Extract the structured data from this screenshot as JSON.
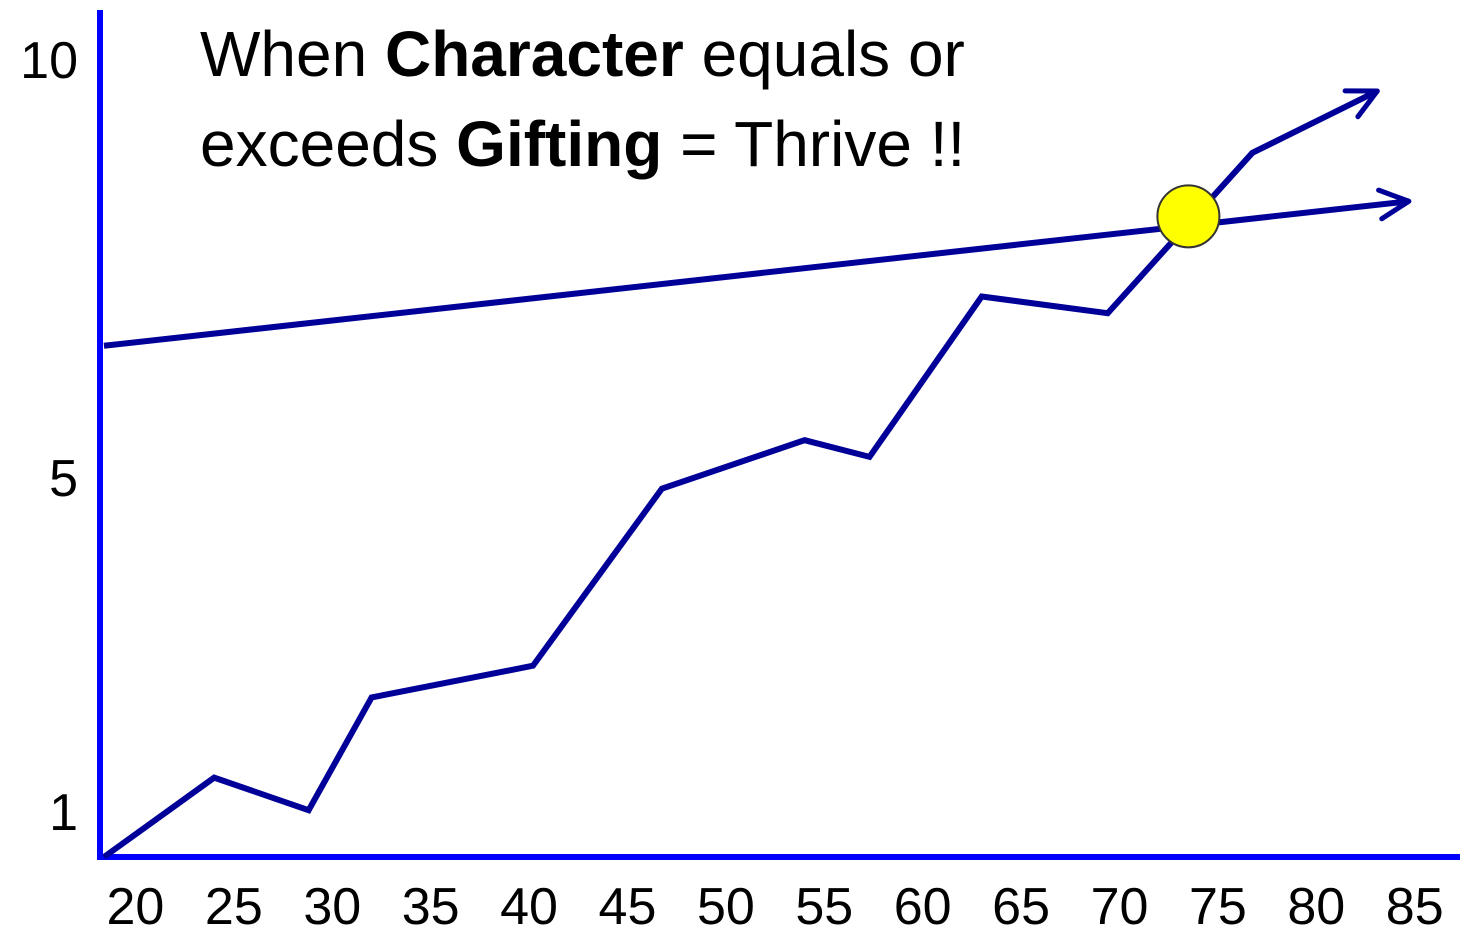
{
  "chart_data": {
    "type": "line",
    "title_lines": [
      [
        {
          "text": "When ",
          "bold": false
        },
        {
          "text": "Character",
          "bold": true
        },
        {
          "text": " equals or",
          "bold": false
        }
      ],
      [
        {
          "text": "exceeds ",
          "bold": false
        },
        {
          "text": "Gifting",
          "bold": true
        },
        {
          "text": " = Thrive !!",
          "bold": false
        }
      ]
    ],
    "series": [
      {
        "color": "#000099",
        "arrow": true,
        "x": [
          18.4,
          24,
          28.8,
          32,
          40.2,
          46.75,
          54,
          57.3,
          63,
          69.4,
          76.75,
          83.1
        ],
        "values": [
          0.46,
          1.41,
          1.02,
          2.37,
          2.75,
          4.87,
          5.45,
          5.25,
          7.17,
          6.97,
          8.89,
          9.63
        ]
      },
      {
        "color": "#000099",
        "arrow": true,
        "x": [
          18.4,
          84.7
        ],
        "values": [
          6.58,
          8.31
        ]
      }
    ],
    "marker": {
      "x": 73.5,
      "y": 8.13,
      "color": "#ffff00"
    },
    "axis_color": "#0000ff",
    "xlim": [
      18.2,
      87.3
    ],
    "ylim": [
      0.46,
      10.6
    ],
    "xticks": [
      20,
      25,
      30,
      35,
      40,
      45,
      50,
      55,
      60,
      65,
      70,
      75,
      80,
      85
    ],
    "yticks": [
      1,
      5,
      10
    ]
  }
}
